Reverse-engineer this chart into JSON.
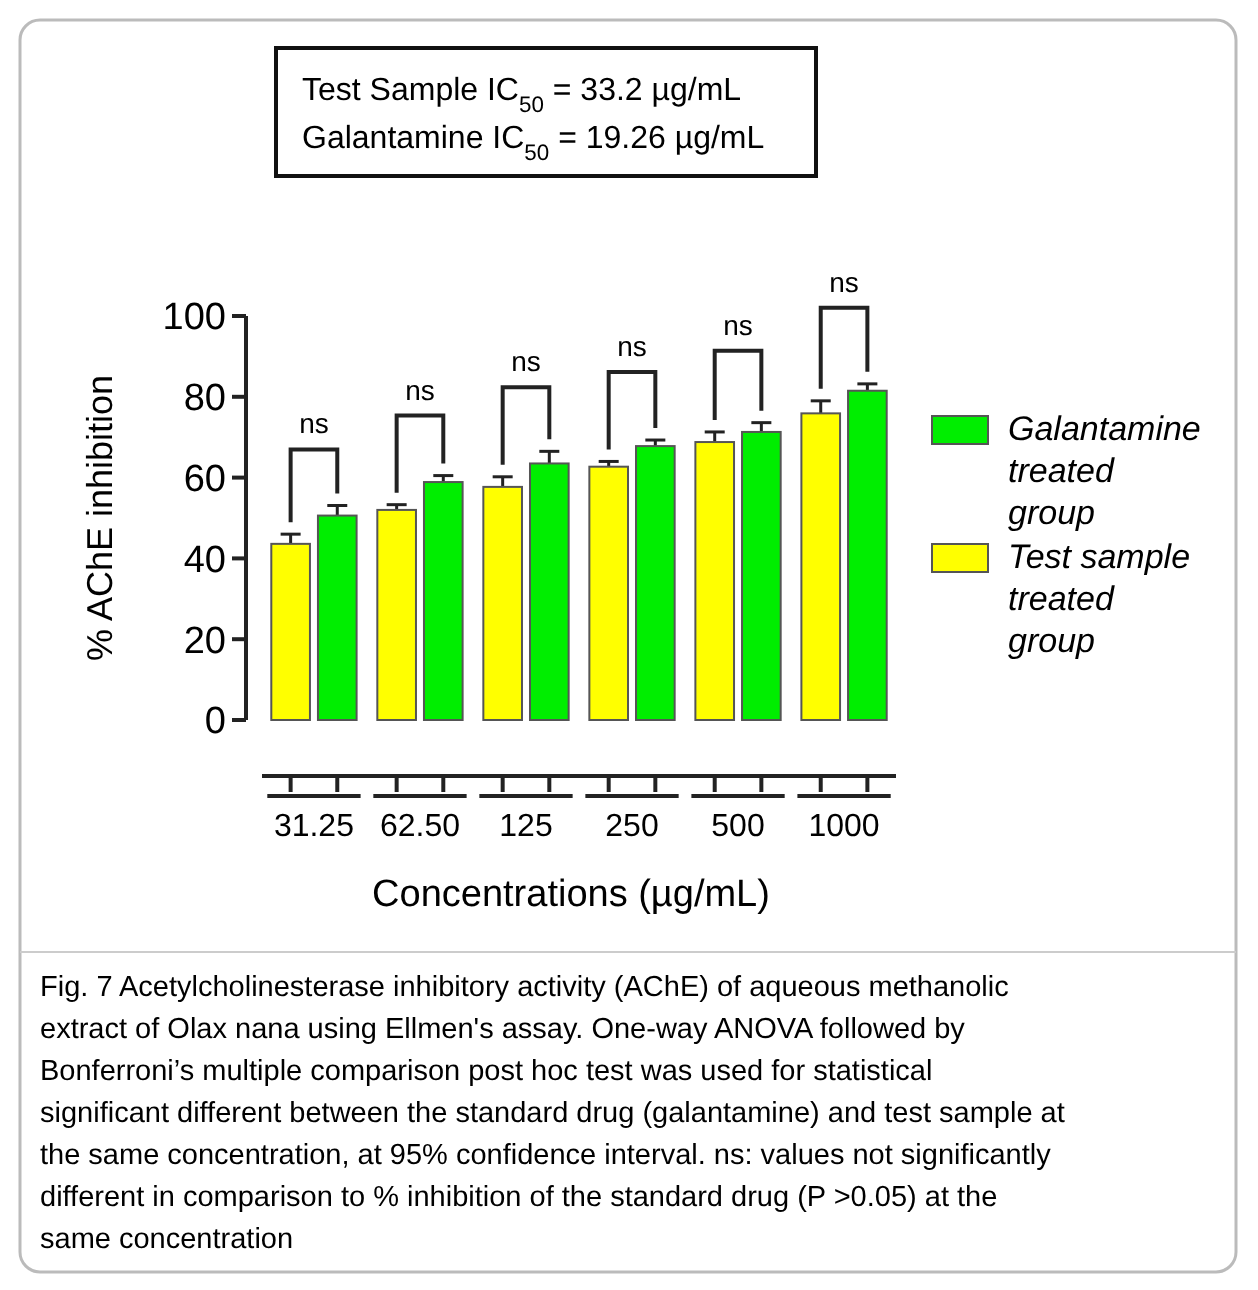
{
  "chart_data": {
    "type": "bar",
    "xlabel": "Concentrations (µg/mL)",
    "ylabel": "% AChE inhibition",
    "categories": [
      "31.25",
      "62.50",
      "125",
      "250",
      "500",
      "1000"
    ],
    "series": [
      {
        "name": "Test sample treated group",
        "color": "#ffff00",
        "values": [
          43.6,
          52,
          57.7,
          62.7,
          68.8,
          75.9
        ],
        "errors": [
          2.4,
          1.3,
          2.5,
          1.3,
          2.5,
          3.1
        ]
      },
      {
        "name": "Galantamine treated group",
        "color": "#00ee00",
        "values": [
          50.6,
          58.9,
          63.5,
          67.8,
          71.3,
          81.5
        ],
        "errors": [
          2.5,
          1.6,
          3.0,
          1.5,
          2.3,
          1.7
        ]
      }
    ],
    "ylim": [
      0,
      100
    ],
    "yticks": [
      0,
      20,
      40,
      60,
      80,
      100
    ],
    "grid": false,
    "legend": "right",
    "annotations": [
      "Test Sample IC$_{50}$ = 33.2 µg/mL",
      "Galantamine IC$_{50}$ = 19.26 µg/mL",
      "ns",
      "ns",
      "ns",
      "ns",
      "ns",
      "ns",
      "Fig. 7 Acetylcholinesterase inhibitory activity (AChE) of aqueous methanolic extract of Olax nana using Ellmen's assay. One-way ANOVA followed by Bonferroni’s multiple comparison post hoc test was used for statistical significant different between the standard drug (galantamine) and test sample at the same concentration, at 95% confidence interval. ns: values not significantly different in comparison to % inhibition of the standard drug (P >0.05) at the same concentration"
    ]
  }
}
